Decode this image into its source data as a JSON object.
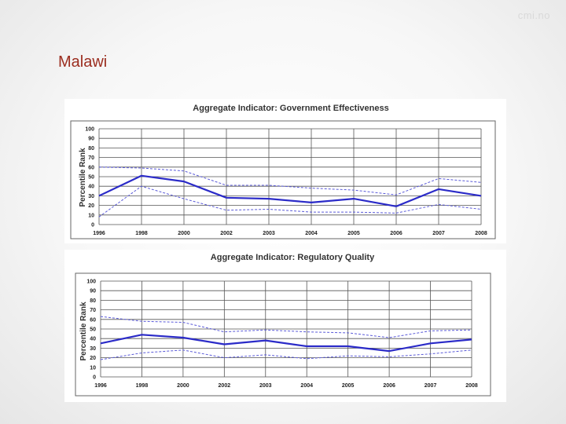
{
  "brand": "cmi.no",
  "slide_title": "Malawi",
  "chart_data": [
    {
      "type": "line",
      "title": "Aggregate Indicator: Government Effectiveness",
      "ylabel": "Percentile Rank",
      "xlabel": "",
      "ylim": [
        0,
        100
      ],
      "yticks": [
        0,
        10,
        20,
        30,
        40,
        50,
        60,
        70,
        80,
        90,
        100
      ],
      "categories": [
        "1996",
        "1998",
        "2000",
        "2002",
        "2003",
        "2004",
        "2005",
        "2006",
        "2007",
        "2008"
      ],
      "grid": true,
      "series": [
        {
          "values": [
            30,
            51,
            45,
            28,
            27,
            23,
            27,
            19,
            37,
            30
          ],
          "style": "solid",
          "color": "#2b2bc8"
        },
        {
          "values": [
            60,
            59,
            56,
            41,
            41,
            38,
            36,
            31,
            48,
            44
          ],
          "style": "dashed",
          "color": "#5a5ad8"
        },
        {
          "values": [
            8,
            40,
            27,
            15,
            16,
            13,
            13,
            12,
            21,
            16
          ],
          "style": "dashed",
          "color": "#5a5ad8"
        }
      ]
    },
    {
      "type": "line",
      "title": "Aggregate Indicator: Regulatory Quality",
      "ylabel": "Percentile Rank",
      "xlabel": "",
      "ylim": [
        0,
        100
      ],
      "yticks": [
        0,
        10,
        20,
        30,
        40,
        50,
        60,
        70,
        80,
        90,
        100
      ],
      "categories": [
        "1996",
        "1998",
        "2000",
        "2002",
        "2003",
        "2004",
        "2005",
        "2006",
        "2007",
        "2008"
      ],
      "grid": true,
      "series": [
        {
          "values": [
            35,
            44,
            41,
            34,
            38,
            32,
            32,
            27,
            35,
            39
          ],
          "style": "solid",
          "color": "#2b2bc8"
        },
        {
          "values": [
            63,
            58,
            57,
            47,
            49,
            47,
            46,
            41,
            48,
            49
          ],
          "style": "dashed",
          "color": "#5a5ad8"
        },
        {
          "values": [
            18,
            25,
            28,
            20,
            23,
            19,
            22,
            21,
            24,
            28
          ],
          "style": "dashed",
          "color": "#5a5ad8"
        }
      ]
    }
  ]
}
